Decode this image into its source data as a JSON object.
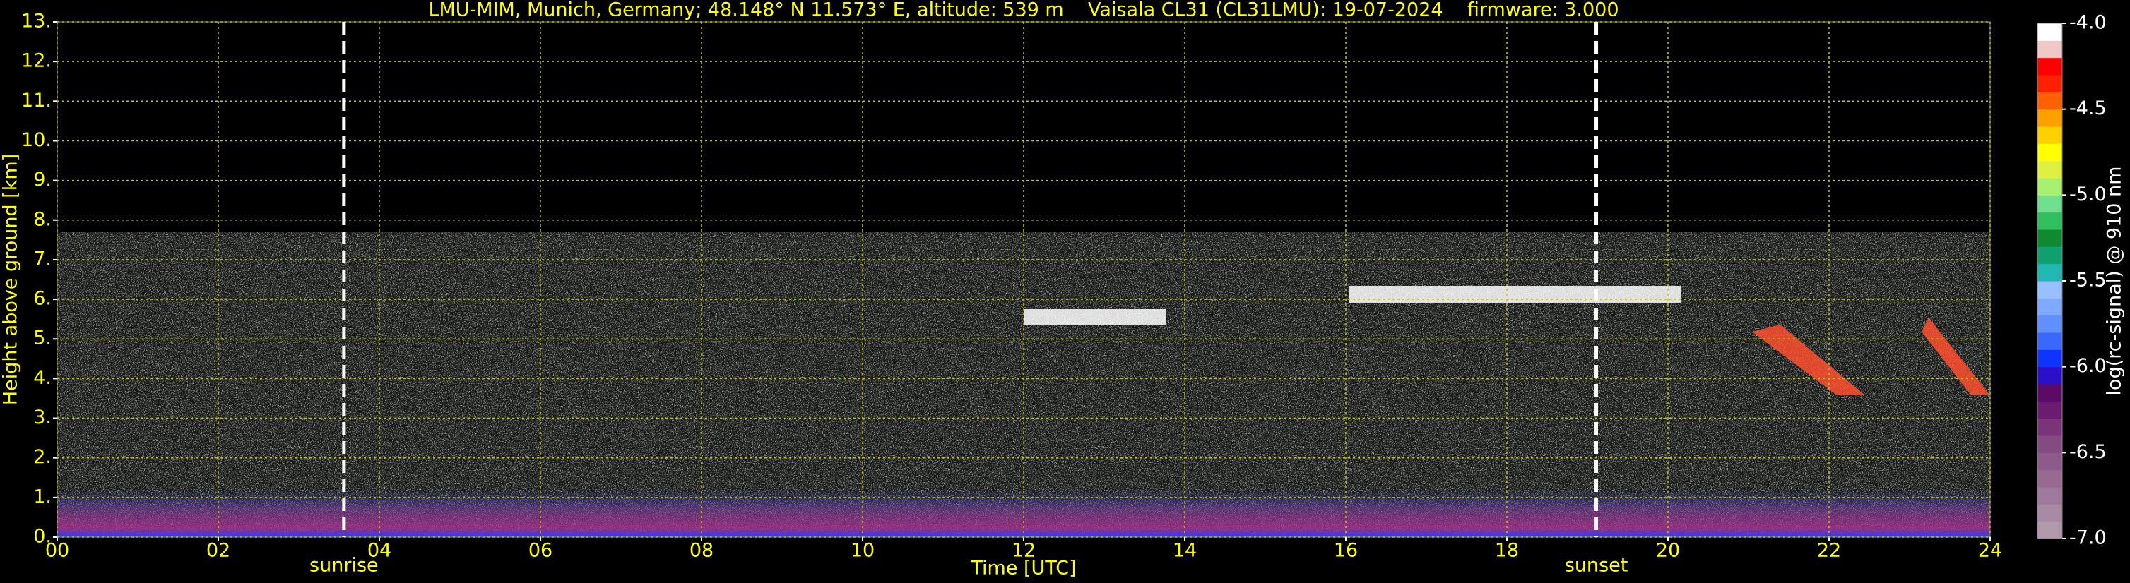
{
  "chart_data": {
    "type": "heatmap",
    "title": "LMU-MIM, Munich, Germany; 48.148° N 11.573° E, altitude: 539 m    Vaisala CL31 (CL31LMU): 19-07-2024    firmware: 3.000",
    "xlabel": "Time [UTC]",
    "ylabel": "Height above ground [km]",
    "xlim": [
      0,
      24
    ],
    "xticks": [
      {
        "value": 0,
        "label": "00"
      },
      {
        "value": 2,
        "label": "02"
      },
      {
        "value": 4,
        "label": "04"
      },
      {
        "value": 6,
        "label": "06"
      },
      {
        "value": 8,
        "label": "08"
      },
      {
        "value": 10,
        "label": "10"
      },
      {
        "value": 12,
        "label": "12"
      },
      {
        "value": 14,
        "label": "14"
      },
      {
        "value": 16,
        "label": "16"
      },
      {
        "value": 18,
        "label": "18"
      },
      {
        "value": 20,
        "label": "20"
      },
      {
        "value": 22,
        "label": "22"
      },
      {
        "value": 24,
        "label": "24"
      }
    ],
    "ylim": [
      0,
      13
    ],
    "yticks": [
      {
        "value": 0,
        "label": "0."
      },
      {
        "value": 1,
        "label": "1."
      },
      {
        "value": 2,
        "label": "2."
      },
      {
        "value": 3,
        "label": "3."
      },
      {
        "value": 4,
        "label": "4."
      },
      {
        "value": 5,
        "label": "5."
      },
      {
        "value": 6,
        "label": "6."
      },
      {
        "value": 7,
        "label": "7."
      },
      {
        "value": 8,
        "label": "8."
      },
      {
        "value": 9,
        "label": "9."
      },
      {
        "value": 10,
        "label": "10."
      },
      {
        "value": 11,
        "label": "11."
      },
      {
        "value": 12,
        "label": "12."
      },
      {
        "value": 13,
        "label": "13."
      }
    ],
    "grid": true,
    "grid_color": "#c8c800",
    "markers": [
      {
        "x": 3.56,
        "label": "sunrise"
      },
      {
        "x": 19.11,
        "label": "sunset"
      }
    ],
    "colorbar": {
      "label": "log(rc-signal) @ 910 nm",
      "lim": [
        -7,
        -4
      ],
      "ticks": [
        {
          "value": -7,
          "label": "-7.0"
        },
        {
          "value": -6.5,
          "label": "-6.5"
        },
        {
          "value": -6,
          "label": "-6.0"
        },
        {
          "value": -5.5,
          "label": "-5.5"
        },
        {
          "value": -5,
          "label": "-5.0"
        },
        {
          "value": -4.5,
          "label": "-4.5"
        },
        {
          "value": -4,
          "label": "-4.0"
        }
      ],
      "colors": [
        "#b09aac",
        "#a98aa5",
        "#a07a9c",
        "#986a92",
        "#8e5a8a",
        "#844a82",
        "#7a3478",
        "#6c1c70",
        "#5c0a68",
        "#2a10c8",
        "#1034ff",
        "#3a68ff",
        "#6090ff",
        "#80aaff",
        "#98c0ff",
        "#20b8b0",
        "#10a070",
        "#108a30",
        "#30c060",
        "#70e090",
        "#a8f070",
        "#e0f040",
        "#ffff00",
        "#ffd000",
        "#ffa000",
        "#ff6000",
        "#ff2000",
        "#ff0000",
        "#f0c8c8",
        "#ffffff"
      ]
    }
  }
}
